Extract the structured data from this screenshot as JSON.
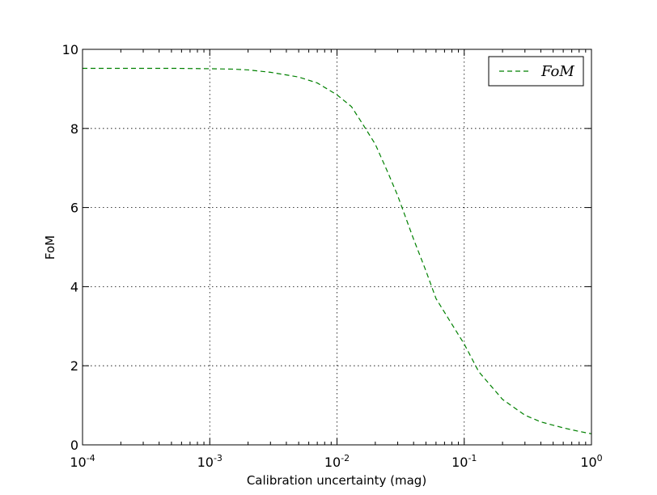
{
  "chart_data": {
    "type": "line",
    "xscale": "log",
    "xlabel": "Calibration uncertainty (mag)",
    "ylabel": "FoM",
    "xlim": [
      0.0001,
      1
    ],
    "ylim": [
      0,
      10
    ],
    "grid": true,
    "legend_placement": "top-right",
    "x_ticks": [
      {
        "value": 0.0001,
        "base": "10",
        "exp": "-4"
      },
      {
        "value": 0.001,
        "base": "10",
        "exp": "-3"
      },
      {
        "value": 0.01,
        "base": "10",
        "exp": "-2"
      },
      {
        "value": 0.1,
        "base": "10",
        "exp": "-1"
      },
      {
        "value": 1,
        "base": "10",
        "exp": "0"
      }
    ],
    "y_ticks": [
      {
        "value": 0,
        "label": "0"
      },
      {
        "value": 2,
        "label": "2"
      },
      {
        "value": 4,
        "label": "4"
      },
      {
        "value": 6,
        "label": "6"
      },
      {
        "value": 8,
        "label": "8"
      },
      {
        "value": 10,
        "label": "10"
      }
    ],
    "series": [
      {
        "name": "FoM",
        "color": "#008000",
        "style": "dashed",
        "x": [
          0.0001,
          0.0002,
          0.0005,
          0.001,
          0.0015,
          0.002,
          0.003,
          0.005,
          0.007,
          0.01,
          0.013,
          0.016,
          0.02,
          0.025,
          0.03,
          0.04,
          0.05,
          0.06,
          0.08,
          0.1,
          0.13,
          0.2,
          0.3,
          0.4,
          0.6,
          0.8,
          1.0
        ],
        "y": [
          9.52,
          9.52,
          9.52,
          9.51,
          9.5,
          9.48,
          9.42,
          9.3,
          9.15,
          8.85,
          8.55,
          8.1,
          7.6,
          6.9,
          6.3,
          5.2,
          4.4,
          3.7,
          3.05,
          2.55,
          1.85,
          1.15,
          0.75,
          0.58,
          0.43,
          0.34,
          0.28
        ]
      }
    ]
  }
}
